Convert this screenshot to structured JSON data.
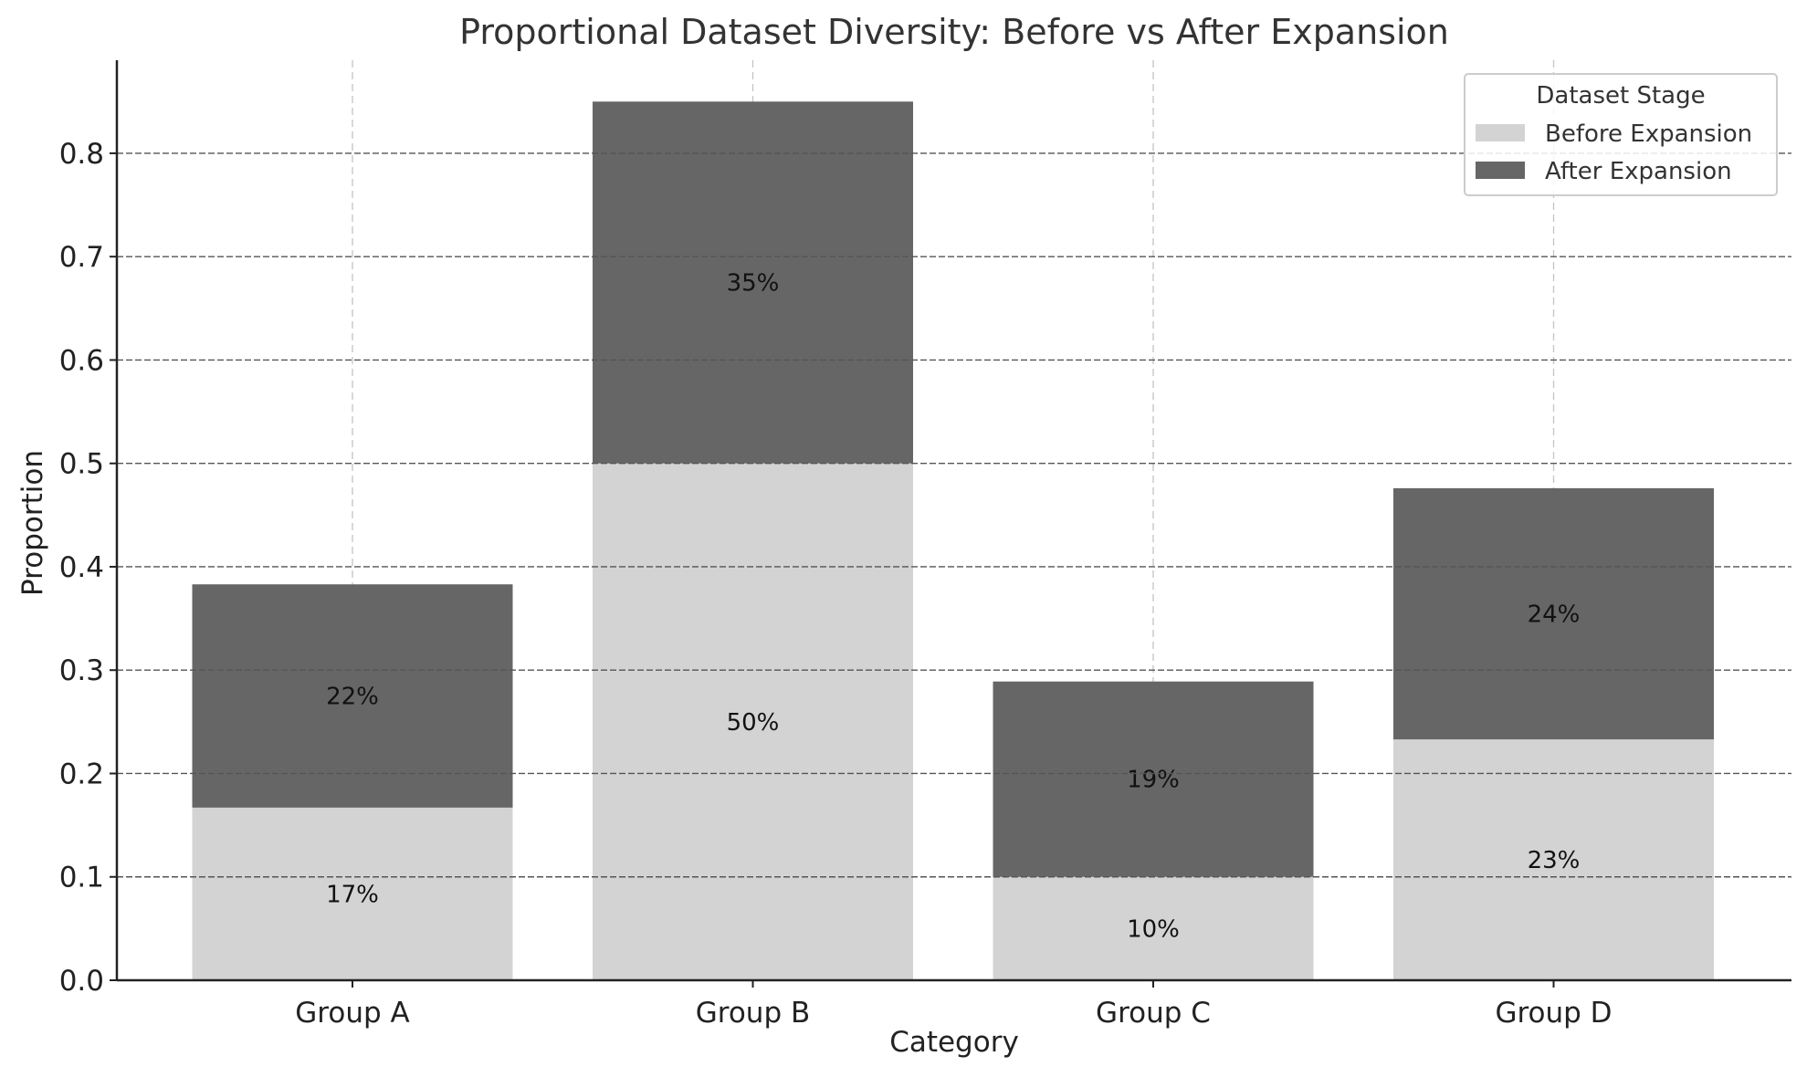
{
  "colors": {
    "before": "#d3d3d3",
    "after": "#666666",
    "grid_h": "#555555",
    "grid_v": "#c4c4c4",
    "axis": "#222222"
  },
  "chart_data": {
    "type": "bar",
    "stacked": true,
    "title": "Proportional Dataset Diversity: Before vs After Expansion",
    "xlabel": "Category",
    "ylabel": "Proportion",
    "categories": [
      "Group A",
      "Group B",
      "Group C",
      "Group D"
    ],
    "ylim": [
      0,
      0.89
    ],
    "yticks": [
      "0.0",
      "0.1",
      "0.2",
      "0.3",
      "0.4",
      "0.5",
      "0.6",
      "0.7",
      "0.8"
    ],
    "grid": true,
    "legend": {
      "title": "Dataset Stage",
      "placement": "top-right"
    },
    "series": [
      {
        "name": "Before Expansion",
        "values": [
          0.167,
          0.5,
          0.1,
          0.233
        ],
        "labels": [
          "17%",
          "50%",
          "10%",
          "23%"
        ]
      },
      {
        "name": "After Expansion",
        "values": [
          0.216,
          0.35,
          0.189,
          0.243
        ],
        "labels": [
          "22%",
          "35%",
          "19%",
          "24%"
        ]
      }
    ]
  }
}
